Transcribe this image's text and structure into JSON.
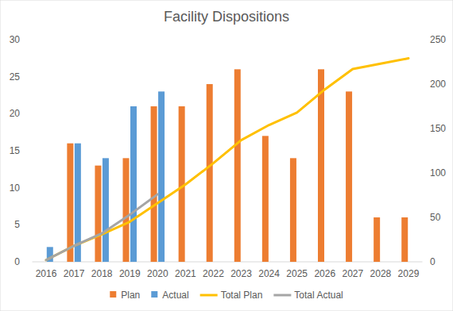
{
  "chart_data": {
    "type": "bar",
    "title": "Facility Dispositions",
    "categories": [
      "2016",
      "2017",
      "2018",
      "2019",
      "2020",
      "2021",
      "2022",
      "2023",
      "2024",
      "2025",
      "2026",
      "2027",
      "2028",
      "2029"
    ],
    "series": [
      {
        "name": "Plan",
        "type": "bar",
        "color": "#ed7d31",
        "values": [
          null,
          16,
          13,
          14,
          21,
          21,
          24,
          26,
          17,
          14,
          26,
          23,
          6,
          6
        ]
      },
      {
        "name": "Actual",
        "type": "bar",
        "color": "#5b9bd5",
        "values": [
          2,
          16,
          14,
          21,
          23,
          null,
          null,
          null,
          null,
          null,
          null,
          null,
          null,
          null
        ]
      },
      {
        "name": "Total Plan",
        "type": "line",
        "axis": "y2",
        "color": "#ffc000",
        "values": [
          2,
          18,
          31,
          45,
          66,
          87,
          111,
          137,
          154,
          168,
          194,
          217,
          223,
          229
        ]
      },
      {
        "name": "Total Actual",
        "type": "line",
        "axis": "y2",
        "color": "#a5a5a5",
        "values": [
          2,
          18,
          32,
          53,
          76,
          null,
          null,
          null,
          null,
          null,
          null,
          null,
          null,
          null
        ]
      }
    ],
    "ylim": [
      0,
      30
    ],
    "yticks": [
      0,
      5,
      10,
      15,
      20,
      25,
      30
    ],
    "y2lim": [
      0,
      250
    ],
    "y2ticks": [
      0,
      50,
      100,
      150,
      200,
      250
    ],
    "grid": false,
    "legend": "bottom"
  }
}
